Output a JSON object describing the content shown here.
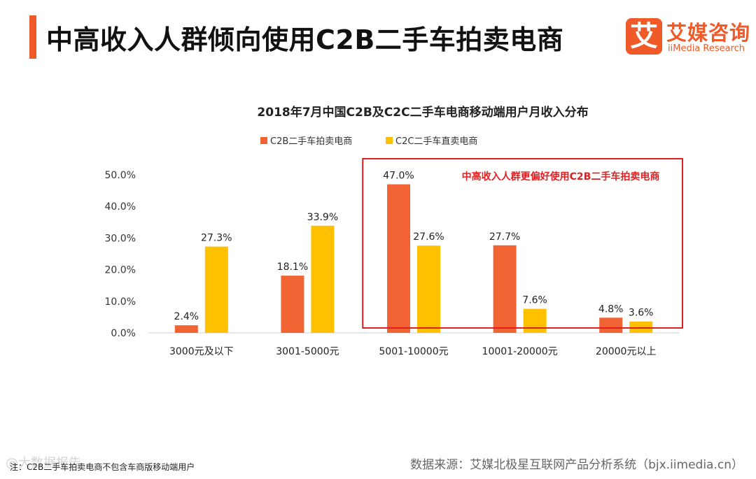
{
  "header": {
    "title": "中高收入人群倾向使用C2B二手车拍卖电商"
  },
  "logo": {
    "mark": "艾",
    "name_cn": "艾媒咨询",
    "name_en": "iiMedia Research"
  },
  "chart_data": {
    "type": "bar",
    "title": "2018年7月中国C2B及C2C二手车电商移动端用户月收入分布",
    "categories": [
      "3000元及以下",
      "3001-5000元",
      "5001-10000元",
      "10001-20000元",
      "20000元以上"
    ],
    "series": [
      {
        "name": "C2B二手车拍卖电商",
        "color": "#f26334",
        "values": [
          2.4,
          18.1,
          47.0,
          27.7,
          4.8
        ]
      },
      {
        "name": "C2C二手车直卖电商",
        "color": "#ffc000",
        "values": [
          27.3,
          33.9,
          27.6,
          7.6,
          3.6
        ]
      }
    ],
    "yticks": [
      "0.0%",
      "10.0%",
      "20.0%",
      "30.0%",
      "40.0%",
      "50.0%"
    ],
    "ylim": [
      0,
      50
    ],
    "xlabel": "",
    "ylabel": "",
    "legend_position": "top-center",
    "annotation": {
      "text": "中高收入人群更偏好使用C2B二手车拍卖电商",
      "color": "#e02020",
      "covers_categories": [
        "5001-10000元",
        "10001-20000元",
        "20000元以上"
      ]
    }
  },
  "footer": {
    "note": "注：C2B二手车拍卖电商不包含车商版移动端用户",
    "source": "数据来源：艾媒北极星互联网产品分析系统（bjx.iimedia.cn）",
    "watermark": "@大数据报告"
  }
}
